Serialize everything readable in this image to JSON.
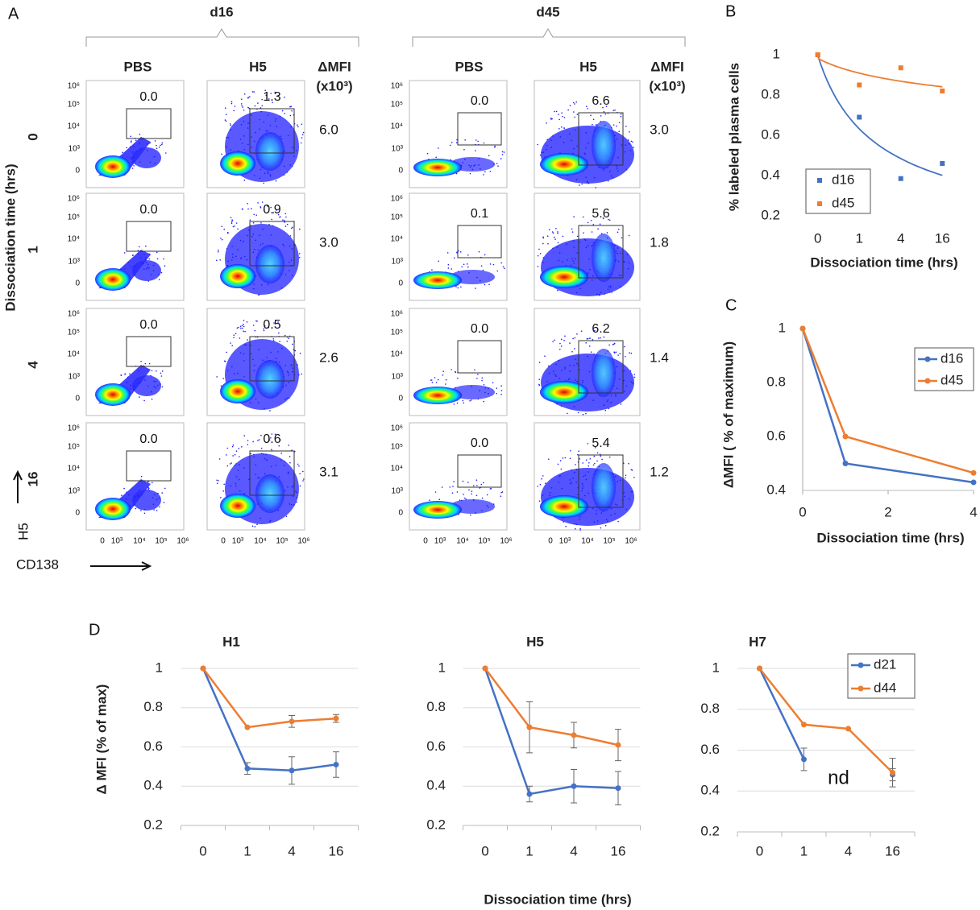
{
  "panel_a": {
    "letter": "A",
    "groups": [
      {
        "label": "d16",
        "columns": [
          "PBS",
          "H5"
        ],
        "delta_label": "ΔMFI",
        "delta_unit": "(x10³)",
        "gates": [
          [
            "0.0",
            "1.3"
          ],
          [
            "0.0",
            "0.9"
          ],
          [
            "0.0",
            "0.5"
          ],
          [
            "0.0",
            "0.6"
          ]
        ],
        "delta_mfi": [
          "6.0",
          "3.0",
          "2.6",
          "3.1"
        ]
      },
      {
        "label": "d45",
        "columns": [
          "PBS",
          "H5"
        ],
        "delta_label": "ΔMFI",
        "delta_unit": "(x10³)",
        "gates": [
          [
            "0.0",
            "6.6"
          ],
          [
            "0.1",
            "5.6"
          ],
          [
            "0.0",
            "6.2"
          ],
          [
            "0.0",
            "5.4"
          ]
        ],
        "delta_mfi": [
          "3.0",
          "1.8",
          "1.4",
          "1.2"
        ]
      }
    ],
    "rows": [
      "0",
      "1",
      "4",
      "16"
    ],
    "row_axis_label": "Dissociation time (hrs)",
    "y_channel": "H5",
    "x_channel": "CD138",
    "y_ticks": [
      "10⁶",
      "10⁵",
      "10⁴",
      "10³",
      "0"
    ],
    "x_ticks": [
      "0",
      "10³",
      "10⁴",
      "10⁵",
      "10⁶"
    ]
  },
  "chart_data": [
    {
      "panel": "B",
      "type": "scatter",
      "ylabel": "% labeled plasma cells",
      "xlabel": "Dissociation time (hrs)",
      "categories": [
        "0",
        "1",
        "4",
        "16"
      ],
      "series": [
        {
          "name": "d16",
          "color": "#4472c4",
          "values": [
            1,
            0.69,
            0.385,
            0.46
          ]
        },
        {
          "name": "d45",
          "color": "#ed7d31",
          "values": [
            1,
            0.85,
            0.935,
            0.82
          ]
        }
      ],
      "ylim": [
        0.2,
        1
      ],
      "yticks": [
        0.2,
        0.4,
        0.6,
        0.8,
        1
      ],
      "grid": false,
      "trendline": "power",
      "legend": "lower left"
    },
    {
      "panel": "C",
      "type": "line",
      "ylabel": "ΔMFI ( % of maximum)",
      "xlabel": "Dissociation time (hrs)",
      "x": [
        0,
        1,
        4
      ],
      "xlim": [
        0,
        4
      ],
      "xticks": [
        0,
        2,
        4
      ],
      "series": [
        {
          "name": "d16",
          "color": "#4472c4",
          "values": [
            1,
            0.5,
            0.43
          ]
        },
        {
          "name": "d45",
          "color": "#ed7d31",
          "values": [
            1,
            0.6,
            0.465
          ]
        }
      ],
      "ylim": [
        0.4,
        1
      ],
      "yticks": [
        0.4,
        0.6,
        0.8,
        1
      ],
      "grid": false,
      "legend": "upper right"
    },
    {
      "panel": "D",
      "type": "line",
      "title": "H1",
      "ylabel": "Δ MFI (% of max)",
      "categories": [
        "0",
        "1",
        "4",
        "16"
      ],
      "series": [
        {
          "name": "d21",
          "color": "#4472c4",
          "values": [
            1,
            0.49,
            0.48,
            0.51
          ],
          "errors": [
            null,
            0.03,
            0.07,
            0.065
          ]
        },
        {
          "name": "d44",
          "color": "#ed7d31",
          "values": [
            1,
            0.7,
            0.73,
            0.745
          ],
          "errors": [
            null,
            null,
            0.03,
            0.02
          ]
        }
      ],
      "ylim": [
        0.2,
        1
      ],
      "yticks": [
        0.2,
        0.4,
        0.6,
        0.8,
        1
      ],
      "grid": true
    },
    {
      "type": "line",
      "title": "H5",
      "xlabel": "Dissociation time (hrs)",
      "categories": [
        "0",
        "1",
        "4",
        "16"
      ],
      "series": [
        {
          "name": "d21",
          "color": "#4472c4",
          "values": [
            1,
            0.36,
            0.4,
            0.39
          ],
          "errors": [
            null,
            0.04,
            0.085,
            0.085
          ]
        },
        {
          "name": "d44",
          "color": "#ed7d31",
          "values": [
            1,
            0.7,
            0.66,
            0.61
          ],
          "errors": [
            null,
            0.13,
            0.065,
            0.08
          ]
        }
      ],
      "ylim": [
        0.2,
        1
      ],
      "yticks": [
        0.2,
        0.4,
        0.6,
        0.8,
        1
      ],
      "grid": true
    },
    {
      "type": "line",
      "title": "H7",
      "annotation": "nd",
      "categories": [
        "0",
        "1",
        "4",
        "16"
      ],
      "series": [
        {
          "name": "d21",
          "color": "#4472c4",
          "values": [
            1,
            0.555,
            null,
            0.48
          ],
          "errors": [
            null,
            0.055,
            null,
            0.03
          ]
        },
        {
          "name": "d44",
          "color": "#ed7d31",
          "values": [
            1,
            0.725,
            0.705,
            0.49
          ],
          "errors": [
            null,
            null,
            null,
            0.07
          ]
        }
      ],
      "ylim": [
        0.2,
        1
      ],
      "yticks": [
        0.2,
        0.4,
        0.6,
        0.8,
        1
      ],
      "grid": true,
      "legend": "upper right"
    }
  ]
}
